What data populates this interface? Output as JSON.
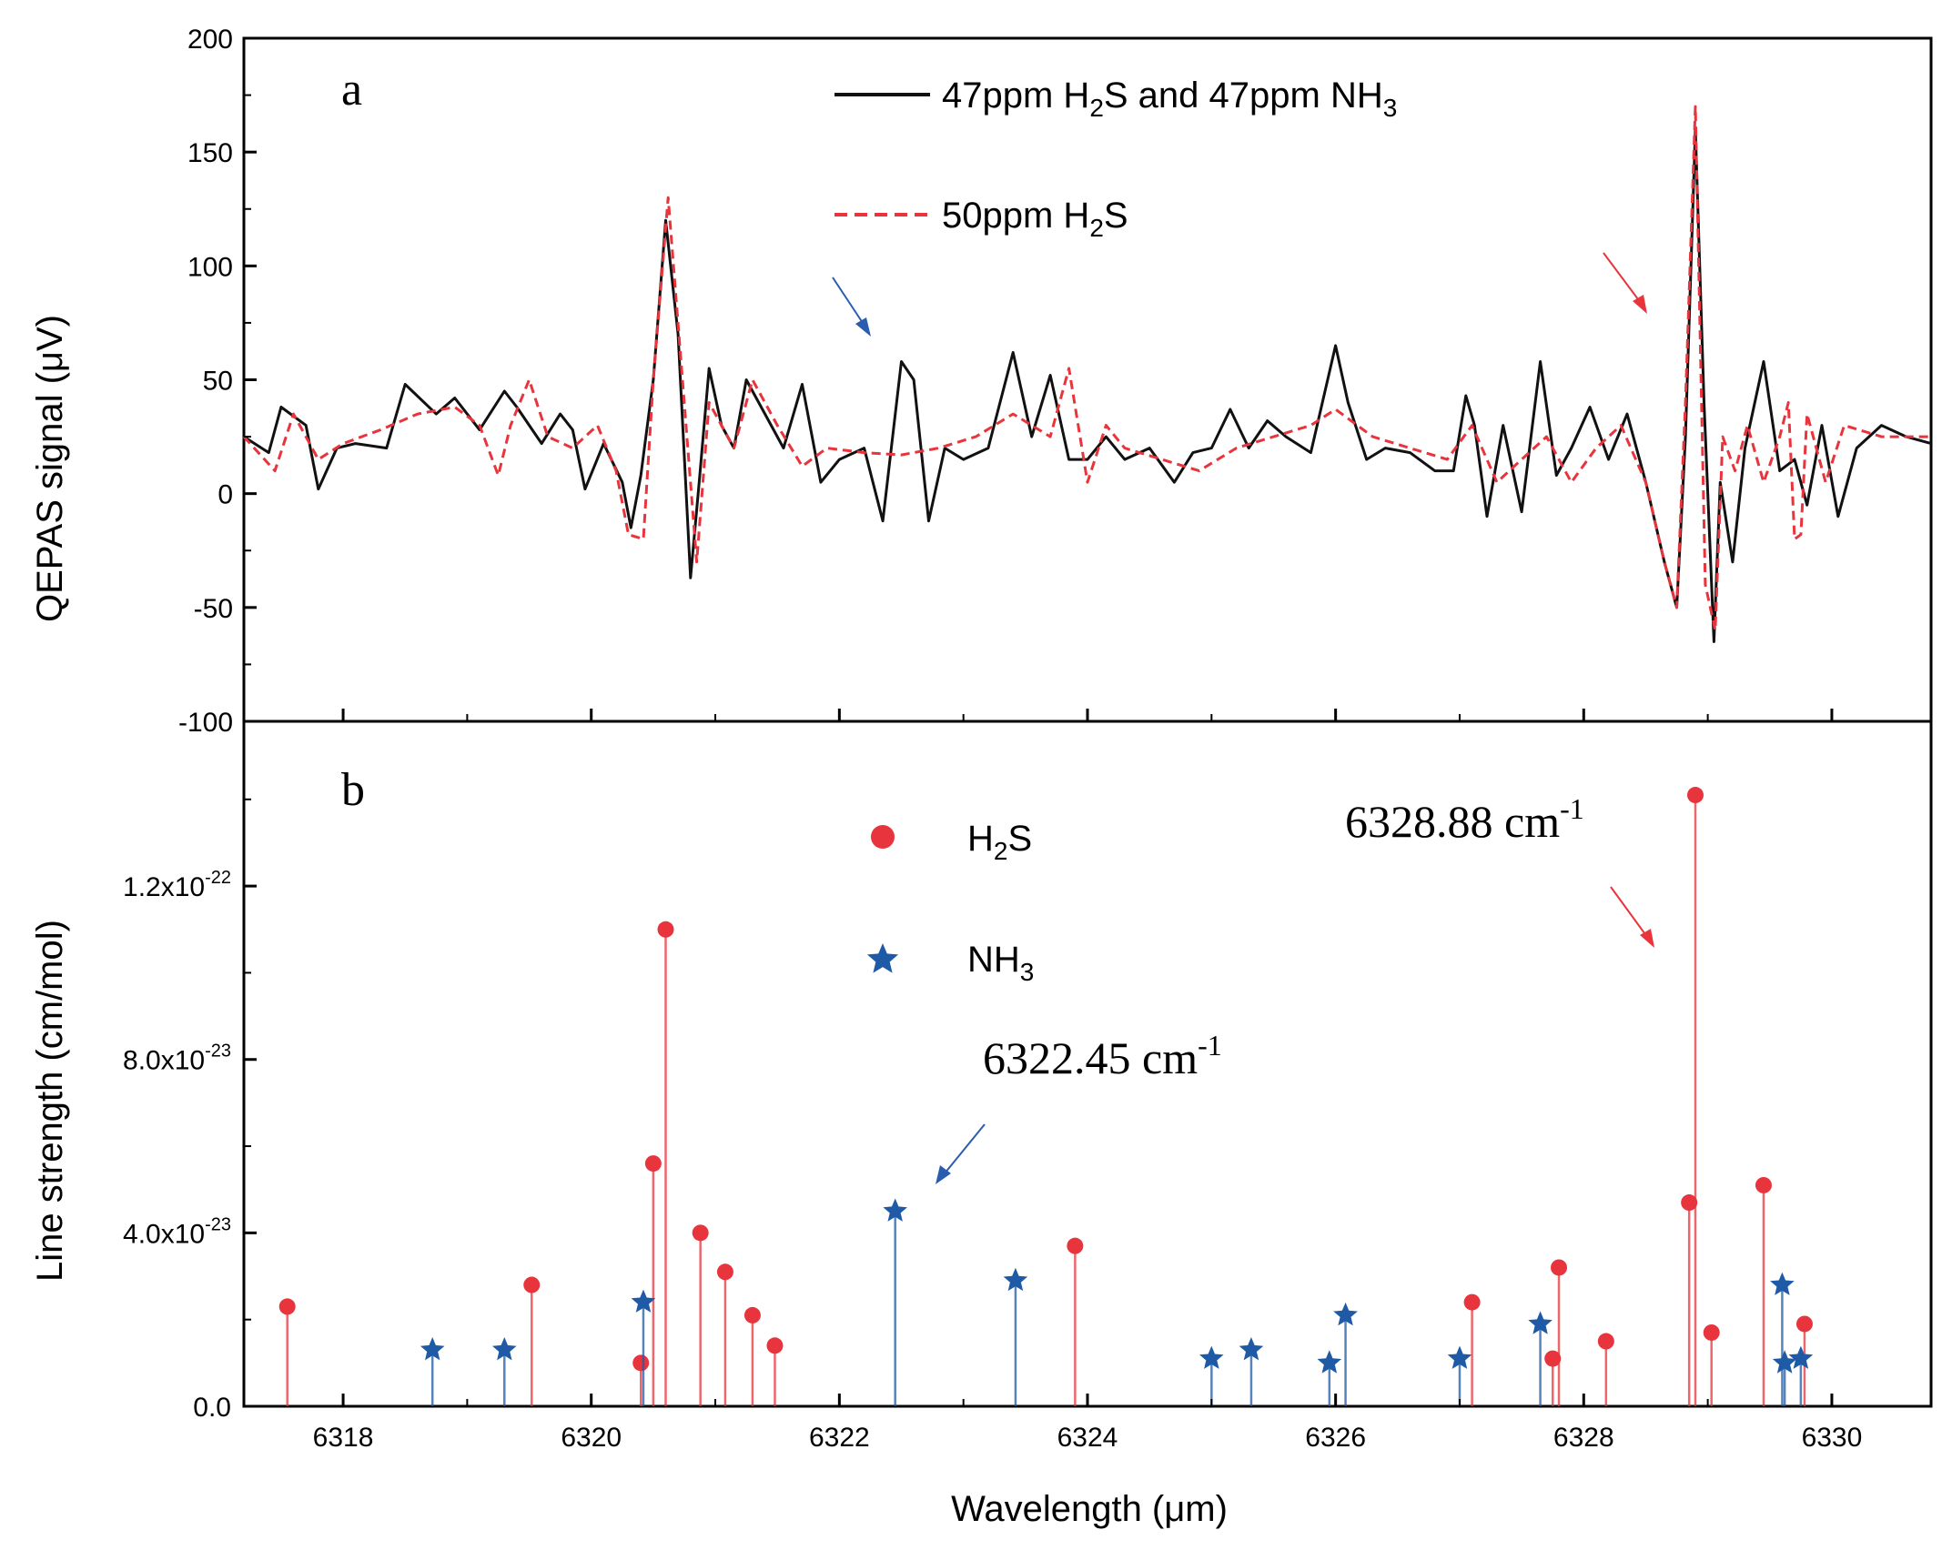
{
  "chart_data": [
    {
      "panel": "a",
      "type": "line",
      "ylabel": "QEPAS signal (μV)",
      "ylim": [
        -100,
        200
      ],
      "yticks": [
        200,
        150,
        100,
        50,
        0,
        -50,
        -100
      ],
      "xlim": [
        6317.2,
        6330.8
      ],
      "legend_location": "top-center",
      "series": [
        {
          "name": "47ppm H₂S and 47ppm NH₃",
          "name_parts": {
            "pre": "47ppm H",
            "sub1": "2",
            "mid": "S and 47ppm NH",
            "sub2": "3"
          },
          "color": "#111111",
          "style": "solid",
          "x": [
            6317.2,
            6317.4,
            6317.5,
            6317.7,
            6317.8,
            6317.95,
            6318.1,
            6318.35,
            6318.5,
            6318.75,
            6318.9,
            6319.1,
            6319.3,
            6319.4,
            6319.6,
            6319.75,
            6319.85,
            6319.95,
            6320.1,
            6320.25,
            6320.32,
            6320.4,
            6320.5,
            6320.6,
            6320.7,
            6320.8,
            6320.87,
            6320.95,
            6321.05,
            6321.15,
            6321.25,
            6321.4,
            6321.55,
            6321.7,
            6321.85,
            6322.0,
            6322.2,
            6322.35,
            6322.5,
            6322.6,
            6322.72,
            6322.85,
            6323.0,
            6323.2,
            6323.4,
            6323.55,
            6323.7,
            6323.85,
            6324.0,
            6324.15,
            6324.3,
            6324.5,
            6324.7,
            6324.85,
            6325.0,
            6325.15,
            6325.3,
            6325.45,
            6325.6,
            6325.8,
            6326.0,
            6326.1,
            6326.25,
            6326.4,
            6326.6,
            6326.8,
            6326.95,
            6327.05,
            6327.12,
            6327.22,
            6327.35,
            6327.5,
            6327.65,
            6327.78,
            6327.9,
            6328.05,
            6328.2,
            6328.35,
            6328.5,
            6328.65,
            6328.75,
            6328.82,
            6328.9,
            6328.97,
            6329.05,
            6329.1,
            6329.2,
            6329.3,
            6329.45,
            6329.58,
            6329.7,
            6329.8,
            6329.92,
            6330.05,
            6330.2,
            6330.4,
            6330.6,
            6330.8
          ],
          "y": [
            25,
            18,
            38,
            30,
            2,
            20,
            22,
            20,
            48,
            35,
            42,
            28,
            45,
            38,
            22,
            35,
            28,
            2,
            22,
            5,
            -15,
            8,
            50,
            120,
            70,
            -37,
            5,
            55,
            30,
            20,
            50,
            35,
            20,
            48,
            5,
            15,
            20,
            -12,
            58,
            50,
            -12,
            20,
            15,
            20,
            62,
            25,
            52,
            15,
            15,
            25,
            15,
            20,
            5,
            18,
            20,
            37,
            20,
            32,
            25,
            18,
            65,
            40,
            15,
            20,
            18,
            10,
            10,
            43,
            30,
            -10,
            30,
            -8,
            58,
            8,
            20,
            38,
            15,
            35,
            5,
            -30,
            -50,
            25,
            160,
            40,
            -65,
            5,
            -30,
            20,
            58,
            10,
            15,
            -5,
            30,
            -10,
            20,
            30,
            25,
            22
          ]
        },
        {
          "name": "50ppm H₂S",
          "name_parts": {
            "pre": "50ppm H",
            "sub1": "2",
            "mid": "S",
            "sub2": ""
          },
          "color": "#e8343c",
          "style": "dashed",
          "x": [
            6317.2,
            6317.45,
            6317.6,
            6317.8,
            6318.0,
            6318.3,
            6318.6,
            6318.9,
            6319.1,
            6319.25,
            6319.35,
            6319.5,
            6319.65,
            6319.85,
            6320.05,
            6320.2,
            6320.3,
            6320.42,
            6320.5,
            6320.62,
            6320.75,
            6320.85,
            6320.95,
            6321.05,
            6321.15,
            6321.3,
            6321.5,
            6321.7,
            6321.9,
            6322.2,
            6322.5,
            6322.8,
            6323.1,
            6323.4,
            6323.7,
            6323.85,
            6324.0,
            6324.15,
            6324.3,
            6324.6,
            6324.9,
            6325.2,
            6325.5,
            6325.8,
            6326.0,
            6326.3,
            6326.6,
            6326.9,
            6327.1,
            6327.3,
            6327.5,
            6327.7,
            6327.9,
            6328.1,
            6328.3,
            6328.5,
            6328.65,
            6328.75,
            6328.82,
            6328.9,
            6328.98,
            6329.06,
            6329.12,
            6329.22,
            6329.32,
            6329.45,
            6329.58,
            6329.65,
            6329.7,
            6329.75,
            6329.8,
            6329.95,
            6330.1,
            6330.4,
            6330.8
          ],
          "y": [
            25,
            10,
            35,
            15,
            22,
            28,
            35,
            38,
            30,
            8,
            30,
            50,
            25,
            20,
            30,
            10,
            -18,
            -20,
            50,
            130,
            40,
            -30,
            40,
            30,
            20,
            50,
            30,
            12,
            20,
            18,
            17,
            20,
            25,
            35,
            25,
            55,
            5,
            30,
            20,
            15,
            10,
            20,
            25,
            30,
            37,
            25,
            20,
            15,
            30,
            5,
            15,
            25,
            5,
            20,
            30,
            5,
            -30,
            -50,
            40,
            170,
            -40,
            -60,
            25,
            10,
            30,
            5,
            25,
            40,
            -20,
            -18,
            35,
            5,
            30,
            25,
            25
          ]
        }
      ],
      "annotations": [
        {
          "kind": "arrow",
          "color": "#2a5db0",
          "target_x": 6322.45
        },
        {
          "kind": "arrow",
          "color": "#e8343c",
          "target_x": 6328.88
        }
      ]
    },
    {
      "panel": "b",
      "type": "stem",
      "xlabel": "Wavelength (μm)",
      "ylabel": "Line strength (cm/mol)",
      "ylim": [
        0,
        1.58e-22
      ],
      "xlim": [
        6317.2,
        6330.8
      ],
      "xticks": [
        6318,
        6320,
        6322,
        6324,
        6326,
        6328,
        6330
      ],
      "yticks": [
        {
          "value": 0,
          "mant": "0.0",
          "exp": ""
        },
        {
          "value": 4e-23,
          "mant": "4.0x10",
          "exp": "-23"
        },
        {
          "value": 8e-23,
          "mant": "8.0x10",
          "exp": "-23"
        },
        {
          "value": 1.2e-22,
          "mant": "1.2x10",
          "exp": "-22"
        }
      ],
      "legend_location": "top-center",
      "series": [
        {
          "name": "H₂S",
          "name_parts": {
            "pre": "H",
            "sub": "2",
            "post": "S"
          },
          "marker": "circle",
          "color": "#e8343c",
          "x": [
            6317.55,
            6319.52,
            6320.4,
            6320.5,
            6320.6,
            6320.88,
            6321.08,
            6321.3,
            6321.48,
            6323.9,
            6327.1,
            6327.75,
            6327.8,
            6328.18,
            6328.85,
            6328.9,
            6329.03,
            6329.45,
            6329.78
          ],
          "y": [
            2.3e-23,
            2.8e-23,
            1e-23,
            5.6e-23,
            1.1e-22,
            4e-23,
            3.1e-23,
            2.1e-23,
            1.4e-23,
            3.7e-23,
            2.4e-23,
            1.1e-23,
            3.2e-23,
            1.5e-23,
            4.7e-23,
            1.41e-22,
            1.7e-23,
            5.1e-23,
            1.9e-23
          ]
        },
        {
          "name": "NH₃",
          "name_parts": {
            "pre": "NH",
            "sub": "3",
            "post": ""
          },
          "marker": "star",
          "color": "#1f5aa6",
          "x": [
            6318.72,
            6319.3,
            6320.42,
            6322.45,
            6323.42,
            6325.0,
            6325.32,
            6325.95,
            6326.08,
            6327.0,
            6327.65,
            6329.6,
            6329.62,
            6329.75
          ],
          "y": [
            1.3e-23,
            1.3e-23,
            2.4e-23,
            4.5e-23,
            2.9e-23,
            1.1e-23,
            1.3e-23,
            1e-23,
            2.1e-23,
            1.1e-23,
            1.9e-23,
            2.8e-23,
            1e-23,
            1.1e-23
          ]
        }
      ],
      "annotations": [
        {
          "kind": "label",
          "text": "6328.88 cm",
          "sup": "-1",
          "color": "#e8343c",
          "target_x": 6328.88
        },
        {
          "kind": "label",
          "text": "6322.45 cm",
          "sup": "-1",
          "color": "#2a5db0",
          "target_x": 6322.45
        }
      ]
    }
  ],
  "panel_labels": {
    "a": "a",
    "b": "b"
  },
  "axis_titles": {
    "top_y": "QEPAS signal (μV)",
    "bottom_y": "Line strength (cm/mol)",
    "x": "Wavelength (μm)"
  },
  "colors": {
    "axis": "#000000",
    "h2s": "#e8343c",
    "nh3": "#1f5aa6",
    "signal": "#111111",
    "arrow_blue": "#2a5db0"
  }
}
